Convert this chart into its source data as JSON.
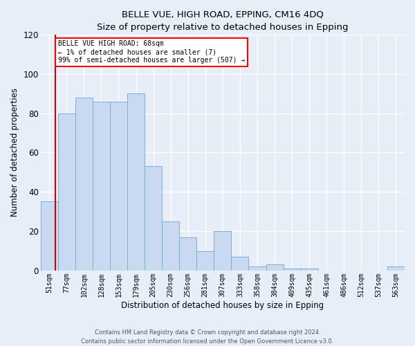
{
  "title": "BELLE VUE, HIGH ROAD, EPPING, CM16 4DQ",
  "subtitle": "Size of property relative to detached houses in Epping",
  "xlabel": "Distribution of detached houses by size in Epping",
  "ylabel": "Number of detached properties",
  "categories": [
    "51sqm",
    "77sqm",
    "102sqm",
    "128sqm",
    "153sqm",
    "179sqm",
    "205sqm",
    "230sqm",
    "256sqm",
    "281sqm",
    "307sqm",
    "333sqm",
    "358sqm",
    "384sqm",
    "409sqm",
    "435sqm",
    "461sqm",
    "486sqm",
    "512sqm",
    "537sqm",
    "563sqm"
  ],
  "values": [
    35,
    80,
    88,
    86,
    86,
    90,
    53,
    25,
    17,
    10,
    20,
    7,
    2,
    3,
    1,
    1,
    0,
    0,
    0,
    0,
    2
  ],
  "bar_color": "#c9d9f0",
  "bar_edge_color": "#7bafd4",
  "ylim": [
    0,
    120
  ],
  "yticks": [
    0,
    20,
    40,
    60,
    80,
    100,
    120
  ],
  "vline_x": 0.35,
  "vline_color": "#cc0000",
  "box_text_line1": "BELLE VUE HIGH ROAD: 68sqm",
  "box_text_line2": "← 1% of detached houses are smaller (7)",
  "box_text_line3": "99% of semi-detached houses are larger (507) →",
  "box_facecolor": "white",
  "box_edgecolor": "red",
  "background_color": "#e8eef8",
  "grid_color": "white",
  "footer_line1": "Contains HM Land Registry data © Crown copyright and database right 2024.",
  "footer_line2": "Contains public sector information licensed under the Open Government Licence v3.0."
}
